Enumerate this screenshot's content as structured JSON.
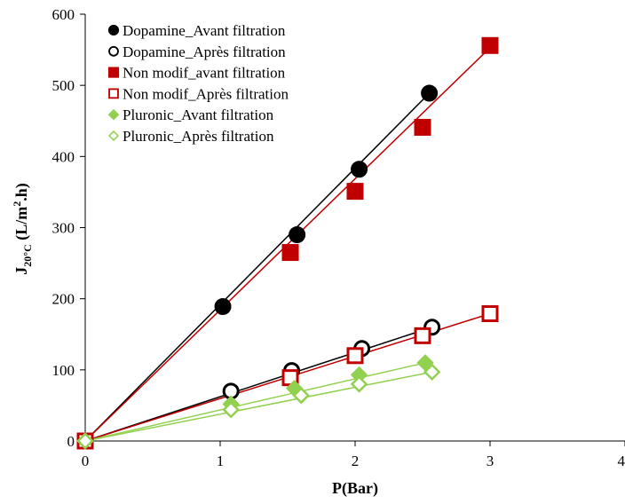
{
  "chart_data": {
    "type": "scatter",
    "xlabel": "P(Bar)",
    "ylabel": {
      "main": "J",
      "sub": "20°C",
      "unit": " (L/m",
      "sup": "2",
      "tail": ".h)"
    },
    "xlim": [
      0,
      4
    ],
    "ylim": [
      0,
      600
    ],
    "xticks": [
      "0",
      "1",
      "2",
      "3",
      "4"
    ],
    "yticks": [
      "0",
      "100",
      "200",
      "300",
      "400",
      "500",
      "600"
    ],
    "grid": false,
    "legend_position": "top-left",
    "series": [
      {
        "name": "Dopamine_Avant filtration",
        "marker": "circle",
        "filled": true,
        "color": "#000000",
        "x": [
          0,
          1.02,
          1.57,
          2.03,
          2.55
        ],
        "y": [
          0,
          189,
          290,
          382,
          489
        ],
        "fit_end": [
          2.55,
          489
        ]
      },
      {
        "name": "Dopamine_Après filtration",
        "marker": "circle",
        "filled": false,
        "color": "#000000",
        "x": [
          0,
          1.08,
          1.53,
          2.05,
          2.57
        ],
        "y": [
          0,
          70,
          99,
          130,
          160
        ],
        "fit_end": [
          2.57,
          160
        ]
      },
      {
        "name": "Non modif_avant filtration",
        "marker": "square",
        "filled": true,
        "color": "#c00000",
        "x": [
          0,
          1.52,
          2.0,
          2.5,
          3.0
        ],
        "y": [
          0,
          265,
          351,
          441,
          556
        ],
        "fit_end": [
          3.0,
          553
        ]
      },
      {
        "name": "Non modif_Après filtration",
        "marker": "square",
        "filled": false,
        "color": "#c00000",
        "x": [
          0,
          1.52,
          2.0,
          2.5,
          3.0
        ],
        "y": [
          0,
          89,
          120,
          148,
          179
        ],
        "fit_end": [
          3.0,
          179
        ]
      },
      {
        "name": "Pluronic_Avant filtration",
        "marker": "diamond",
        "filled": true,
        "color": "#92d050",
        "x": [
          0,
          1.08,
          1.55,
          2.03,
          2.52
        ],
        "y": [
          0,
          52,
          74,
          93,
          110
        ],
        "fit_end": [
          2.52,
          110
        ]
      },
      {
        "name": "Pluronic_Après filtration",
        "marker": "diamond",
        "filled": false,
        "color": "#92d050",
        "x": [
          0,
          1.08,
          1.6,
          2.03,
          2.57
        ],
        "y": [
          0,
          44,
          64,
          80,
          97
        ],
        "fit_end": [
          2.57,
          97
        ]
      }
    ]
  }
}
